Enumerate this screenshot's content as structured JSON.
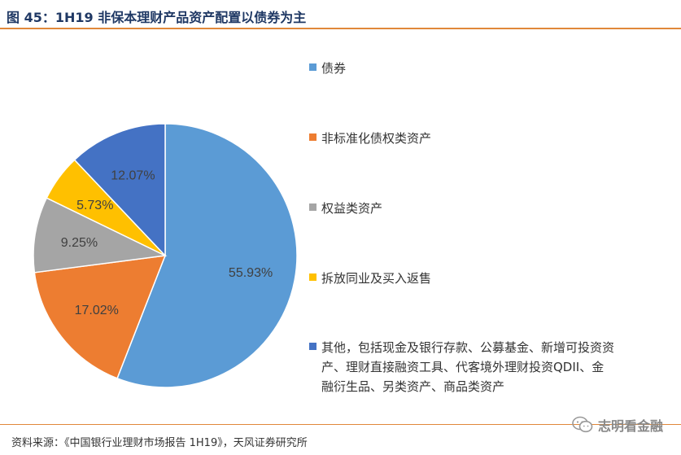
{
  "header": {
    "title": "图 45：1H19 非保本理财产品资产配置以债券为主"
  },
  "footer": {
    "source": "资料来源：《中国银行业理财市场报告 1H19》，天风证券研究所"
  },
  "watermark": {
    "text": "志明看金融",
    "icon": "wechat-icon"
  },
  "chart_data": {
    "type": "pie",
    "title": "",
    "start_angle_deg": 0,
    "direction": "clockwise",
    "legend_position": "right",
    "slices": [
      {
        "label": "债券",
        "value": 55.93,
        "value_label": "55.93%",
        "color": "#5B9BD5"
      },
      {
        "label": "非标准化债权类资产",
        "value": 17.02,
        "value_label": "17.02%",
        "color": "#ED7D31"
      },
      {
        "label": "权益类资产",
        "value": 9.25,
        "value_label": "9.25%",
        "color": "#A5A5A5"
      },
      {
        "label": "拆放同业及买入返售",
        "value": 5.73,
        "value_label": "5.73%",
        "color": "#FFC000"
      },
      {
        "label": "其他，包括现金及银行存款、公募基金、新增可投资资产、理财直接融资工具、代客境外理财投资QDII、金融衍生品、另类资产、商品类资产",
        "value": 12.07,
        "value_label": "12.07%",
        "color": "#4472C4"
      }
    ]
  }
}
